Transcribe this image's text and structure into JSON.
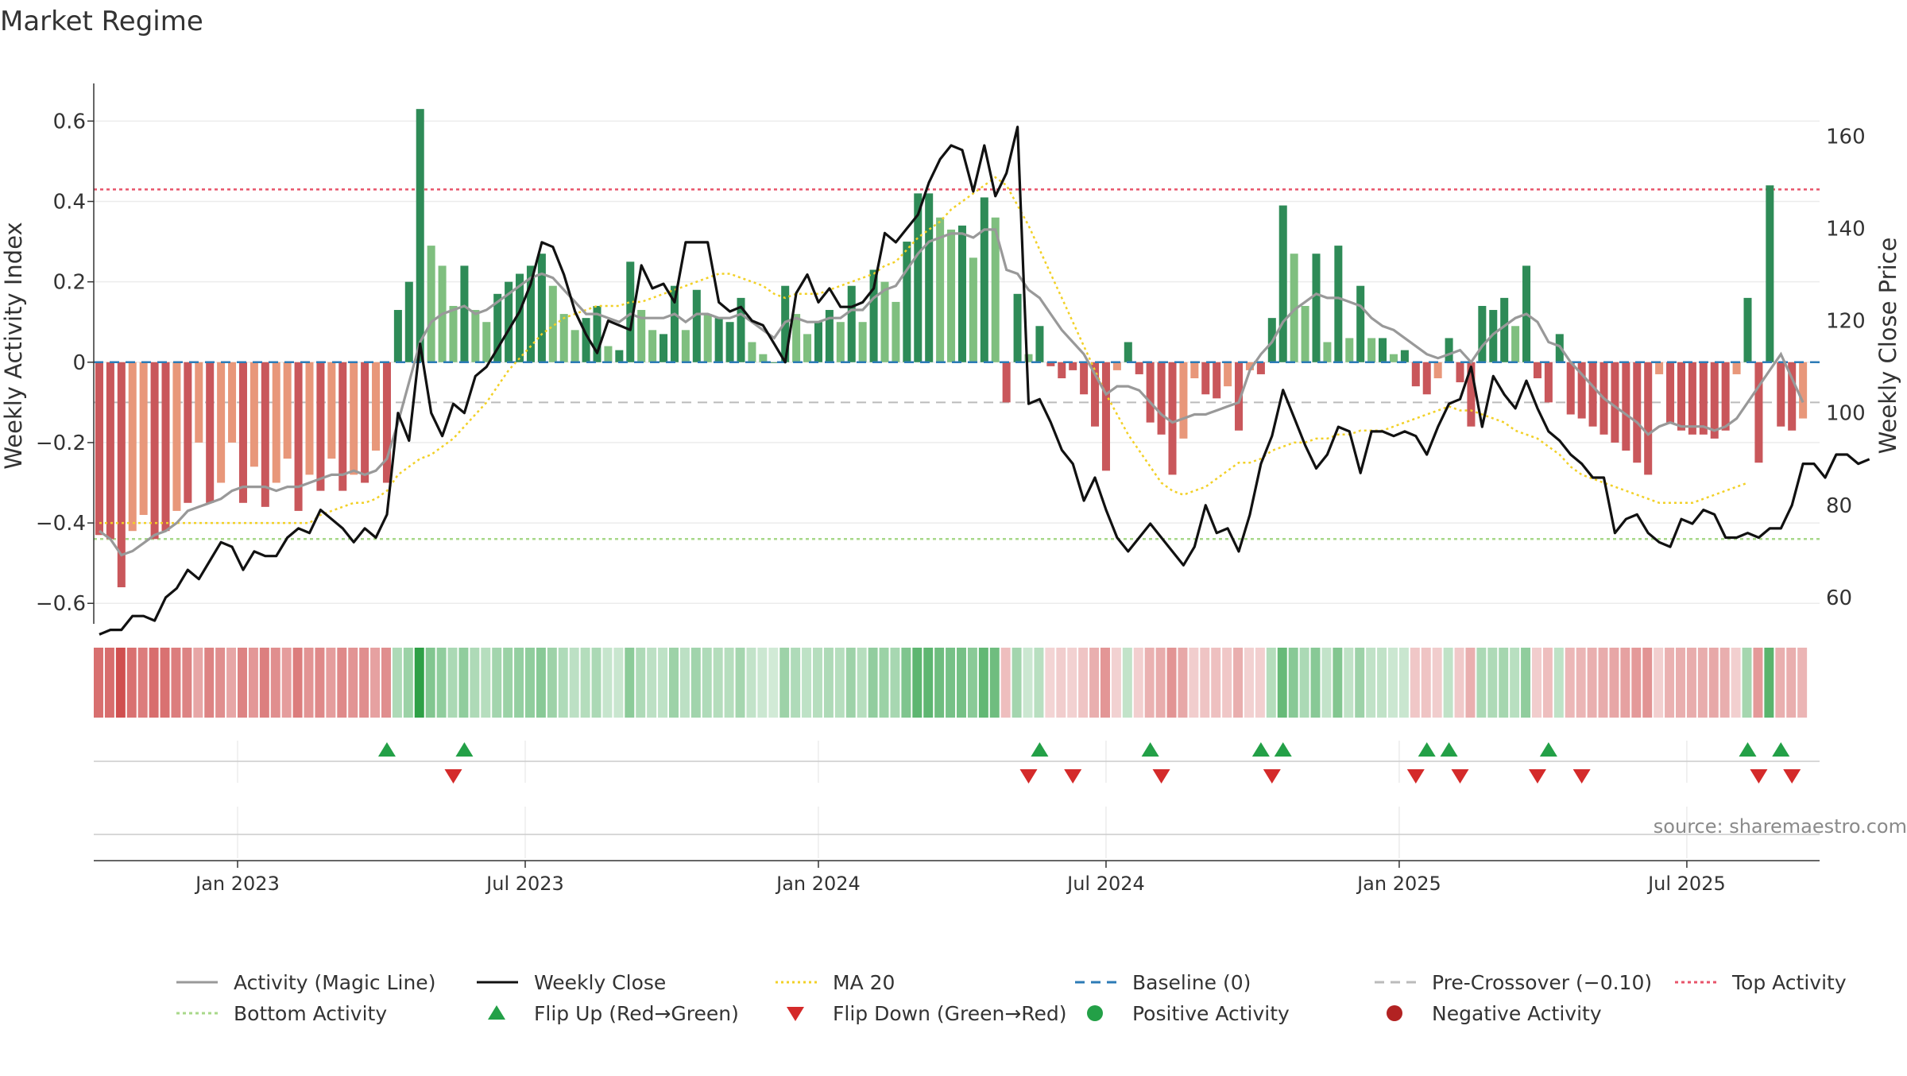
{
  "title": "Market Regime",
  "source": "source: sharemaestro.com",
  "chart_data": {
    "type": "bar",
    "weeks": 156,
    "start_date": "2022-10-10",
    "x_ticks": [
      "Jan 2023",
      "Jul 2023",
      "Jan 2024",
      "Jul 2024",
      "Jan 2025",
      "Jul 2025"
    ],
    "x_tick_weeks": [
      12.5,
      38.5,
      65,
      91,
      117.5,
      143.5
    ],
    "left_axis": {
      "label": "Weekly Activity Index",
      "ticks": [
        "0.6",
        "0.4",
        "0.2",
        "0",
        "−0.2",
        "−0.4",
        "−0.6"
      ],
      "tick_values": [
        0.6,
        0.4,
        0.2,
        0,
        -0.2,
        -0.4,
        -0.6
      ],
      "ylim": [
        -0.68,
        0.66
      ]
    },
    "right_axis": {
      "label": "Weekly Close Price",
      "ticks": [
        "160",
        "140",
        "120",
        "100",
        "80",
        "60"
      ],
      "tick_values": [
        160,
        140,
        120,
        100,
        80,
        60
      ],
      "ylim": [
        50,
        168.5
      ]
    },
    "reference_lines": {
      "top_activity": 0.43,
      "bottom_activity": -0.44,
      "pre_crossover": -0.1,
      "baseline": 0
    },
    "activity": [
      -0.43,
      -0.44,
      -0.56,
      -0.42,
      -0.38,
      -0.44,
      -0.42,
      -0.37,
      -0.35,
      -0.2,
      -0.35,
      -0.3,
      -0.2,
      -0.35,
      -0.26,
      -0.36,
      -0.3,
      -0.24,
      -0.37,
      -0.28,
      -0.32,
      -0.24,
      -0.32,
      -0.28,
      -0.3,
      -0.22,
      -0.3,
      0.13,
      0.2,
      0.63,
      0.29,
      0.24,
      0.14,
      0.24,
      0.13,
      0.1,
      0.17,
      0.2,
      0.22,
      0.24,
      0.27,
      0.19,
      0.12,
      0.08,
      0.11,
      0.14,
      0.04,
      0.03,
      0.25,
      0.13,
      0.08,
      0.07,
      0.19,
      0.08,
      0.18,
      0.12,
      0.11,
      0.1,
      0.16,
      0.05,
      0.02,
      0.0,
      0.19,
      0.12,
      0.07,
      0.1,
      0.13,
      0.1,
      0.19,
      0.1,
      0.23,
      0.2,
      0.15,
      0.3,
      0.42,
      0.42,
      0.36,
      0.33,
      0.34,
      0.26,
      0.41,
      0.36,
      -0.1,
      0.17,
      0.02,
      0.09,
      -0.01,
      -0.04,
      -0.02,
      -0.08,
      -0.16,
      -0.27,
      -0.02,
      0.05,
      -0.03,
      -0.15,
      -0.18,
      -0.28,
      -0.19,
      -0.04,
      -0.08,
      -0.09,
      -0.06,
      -0.17,
      -0.02,
      -0.03,
      0.11,
      0.39,
      0.27,
      0.14,
      0.27,
      0.05,
      0.29,
      0.06,
      0.19,
      0.06,
      0.06,
      0.02,
      0.03,
      -0.06,
      -0.08,
      -0.04,
      0.06,
      -0.05,
      -0.16,
      0.14,
      0.13,
      0.16,
      0.09,
      0.24,
      -0.04,
      -0.1,
      0.07,
      -0.13,
      -0.14,
      -0.16,
      -0.18,
      -0.2,
      -0.22,
      -0.25,
      -0.28,
      -0.03,
      -0.15,
      -0.17,
      -0.18,
      -0.18,
      -0.19,
      -0.17,
      -0.03,
      0.16,
      -0.25,
      0.44,
      -0.16,
      -0.17,
      -0.14
    ],
    "magic_line": [
      -0.42,
      -0.44,
      -0.48,
      -0.47,
      -0.45,
      -0.43,
      -0.42,
      -0.4,
      -0.37,
      -0.36,
      -0.35,
      -0.34,
      -0.32,
      -0.31,
      -0.31,
      -0.31,
      -0.32,
      -0.31,
      -0.31,
      -0.3,
      -0.29,
      -0.28,
      -0.28,
      -0.27,
      -0.28,
      -0.27,
      -0.24,
      -0.15,
      -0.05,
      0.05,
      0.1,
      0.12,
      0.13,
      0.14,
      0.12,
      0.13,
      0.15,
      0.17,
      0.19,
      0.21,
      0.22,
      0.21,
      0.18,
      0.15,
      0.12,
      0.12,
      0.11,
      0.1,
      0.12,
      0.11,
      0.11,
      0.11,
      0.12,
      0.1,
      0.12,
      0.12,
      0.11,
      0.11,
      0.12,
      0.1,
      0.08,
      0.06,
      0.1,
      0.11,
      0.1,
      0.1,
      0.11,
      0.11,
      0.13,
      0.13,
      0.16,
      0.18,
      0.19,
      0.23,
      0.27,
      0.3,
      0.31,
      0.32,
      0.32,
      0.31,
      0.33,
      0.33,
      0.23,
      0.22,
      0.18,
      0.16,
      0.12,
      0.08,
      0.05,
      0.02,
      -0.03,
      -0.08,
      -0.06,
      -0.06,
      -0.07,
      -0.1,
      -0.13,
      -0.15,
      -0.14,
      -0.13,
      -0.13,
      -0.12,
      -0.11,
      -0.1,
      -0.02,
      0.02,
      0.05,
      0.1,
      0.13,
      0.15,
      0.17,
      0.16,
      0.16,
      0.15,
      0.14,
      0.11,
      0.09,
      0.08,
      0.06,
      0.04,
      0.02,
      0.01,
      0.02,
      0.03,
      0.0,
      0.04,
      0.07,
      0.09,
      0.11,
      0.12,
      0.1,
      0.05,
      0.04,
      0.0,
      -0.03,
      -0.06,
      -0.09,
      -0.11,
      -0.13,
      -0.15,
      -0.18,
      -0.16,
      -0.15,
      -0.16,
      -0.16,
      -0.16,
      -0.17,
      -0.16,
      -0.14,
      -0.1,
      -0.06,
      -0.02,
      0.02,
      -0.04,
      -0.1
    ],
    "weekly_close": [
      52,
      53,
      53,
      56,
      56,
      55,
      60,
      62,
      66,
      64,
      68,
      72,
      71,
      66,
      70,
      69,
      69,
      73,
      75,
      74,
      79,
      77,
      75,
      72,
      75,
      73,
      78,
      100,
      94,
      115,
      100,
      95,
      102,
      100,
      108,
      110,
      114,
      118,
      122,
      128,
      137,
      136,
      130,
      122,
      117,
      113,
      120,
      119,
      118,
      132,
      127,
      128,
      124,
      137,
      137,
      137,
      124,
      122,
      123,
      120,
      119,
      115,
      111,
      126,
      130,
      124,
      127,
      123,
      123,
      124,
      127,
      139,
      137,
      140,
      143,
      150,
      155,
      158,
      157,
      148,
      158,
      147,
      152,
      162,
      102,
      103,
      98,
      92,
      89,
      81,
      86,
      79,
      73,
      70,
      73,
      76,
      73,
      70,
      67,
      71,
      80,
      74,
      75,
      70,
      78,
      89,
      95,
      105,
      99,
      93,
      88,
      91,
      97,
      96,
      87,
      96,
      96,
      95,
      96,
      95,
      91,
      97,
      102,
      103,
      110,
      97,
      108,
      104,
      101,
      107,
      101,
      96,
      94,
      91,
      89,
      86,
      86,
      74,
      77,
      78,
      74,
      72,
      71,
      77,
      76,
      79,
      78,
      73,
      73,
      74,
      73,
      75,
      75,
      80,
      89,
      89,
      86,
      91,
      91,
      89,
      90
    ],
    "ma20": [
      -0.4,
      -0.4,
      -0.4,
      -0.4,
      -0.4,
      -0.4,
      -0.4,
      -0.4,
      -0.4,
      -0.4,
      -0.4,
      -0.4,
      -0.4,
      -0.4,
      -0.4,
      -0.4,
      -0.4,
      -0.4,
      -0.4,
      -0.4,
      -0.38,
      -0.37,
      -0.36,
      -0.35,
      -0.35,
      -0.34,
      -0.32,
      -0.28,
      -0.26,
      -0.24,
      -0.23,
      -0.21,
      -0.19,
      -0.16,
      -0.13,
      -0.1,
      -0.06,
      -0.02,
      0.01,
      0.04,
      0.07,
      0.09,
      0.11,
      0.12,
      0.13,
      0.14,
      0.14,
      0.14,
      0.15,
      0.15,
      0.16,
      0.17,
      0.18,
      0.19,
      0.2,
      0.21,
      0.22,
      0.22,
      0.21,
      0.2,
      0.19,
      0.17,
      0.16,
      0.17,
      0.17,
      0.17,
      0.18,
      0.19,
      0.2,
      0.21,
      0.22,
      0.24,
      0.25,
      0.28,
      0.31,
      0.33,
      0.35,
      0.38,
      0.4,
      0.42,
      0.44,
      0.46,
      0.44,
      0.39,
      0.34,
      0.28,
      0.22,
      0.16,
      0.1,
      0.04,
      -0.02,
      -0.08,
      -0.13,
      -0.18,
      -0.22,
      -0.26,
      -0.3,
      -0.32,
      -0.33,
      -0.32,
      -0.31,
      -0.29,
      -0.27,
      -0.25,
      -0.25,
      -0.24,
      -0.22,
      -0.21,
      -0.2,
      -0.2,
      -0.19,
      -0.19,
      -0.18,
      -0.18,
      -0.17,
      -0.17,
      -0.17,
      -0.16,
      -0.15,
      -0.14,
      -0.13,
      -0.12,
      -0.11,
      -0.12,
      -0.12,
      -0.13,
      -0.14,
      -0.15,
      -0.17,
      -0.18,
      -0.19,
      -0.21,
      -0.23,
      -0.26,
      -0.28,
      -0.29,
      -0.3,
      -0.31,
      -0.32,
      -0.33,
      -0.34,
      -0.35,
      -0.35,
      -0.35,
      -0.35,
      -0.34,
      -0.33,
      -0.32,
      -0.31,
      -0.3
    ],
    "flip_up_weeks": [
      26,
      33,
      85,
      95,
      105,
      107,
      120,
      122,
      131,
      149,
      152
    ],
    "flip_down_weeks": [
      32,
      84,
      88,
      96,
      106,
      119,
      123,
      130,
      134,
      150,
      153
    ],
    "bar_colors": {
      "strong_positive": "#2E8B57",
      "weak_positive": "#7FBF7F",
      "strong_negative": "#C9575B",
      "weak_negative": "#E8977A"
    },
    "legend": [
      {
        "label": "Activity (Magic Line)",
        "kind": "line",
        "color": "#999999",
        "dash": ""
      },
      {
        "label": "Weekly Close",
        "kind": "line",
        "color": "#111111",
        "dash": ""
      },
      {
        "label": "MA 20",
        "kind": "line",
        "color": "#F2D027",
        "dash": "3,4"
      },
      {
        "label": "Baseline (0)",
        "kind": "line",
        "color": "#2C7BB6",
        "dash": "12,8"
      },
      {
        "label": "Pre-Crossover (−0.10)",
        "kind": "line",
        "color": "#BBBBBB",
        "dash": "12,8"
      },
      {
        "label": "Top Activity",
        "kind": "line",
        "color": "#E8556B",
        "dash": "4,4"
      },
      {
        "label": "Bottom Activity",
        "kind": "line",
        "color": "#A8D88A",
        "dash": "4,4"
      },
      {
        "label": "Flip Up (Red→Green)",
        "kind": "tri-up",
        "color": "#23A047",
        "dash": ""
      },
      {
        "label": "Flip Down (Green→Red)",
        "kind": "tri-down",
        "color": "#D42A2A",
        "dash": ""
      },
      {
        "label": "Positive Activity",
        "kind": "dot",
        "color": "#23A047",
        "dash": ""
      },
      {
        "label": "Negative Activity",
        "kind": "dot",
        "color": "#B22222",
        "dash": ""
      }
    ]
  }
}
